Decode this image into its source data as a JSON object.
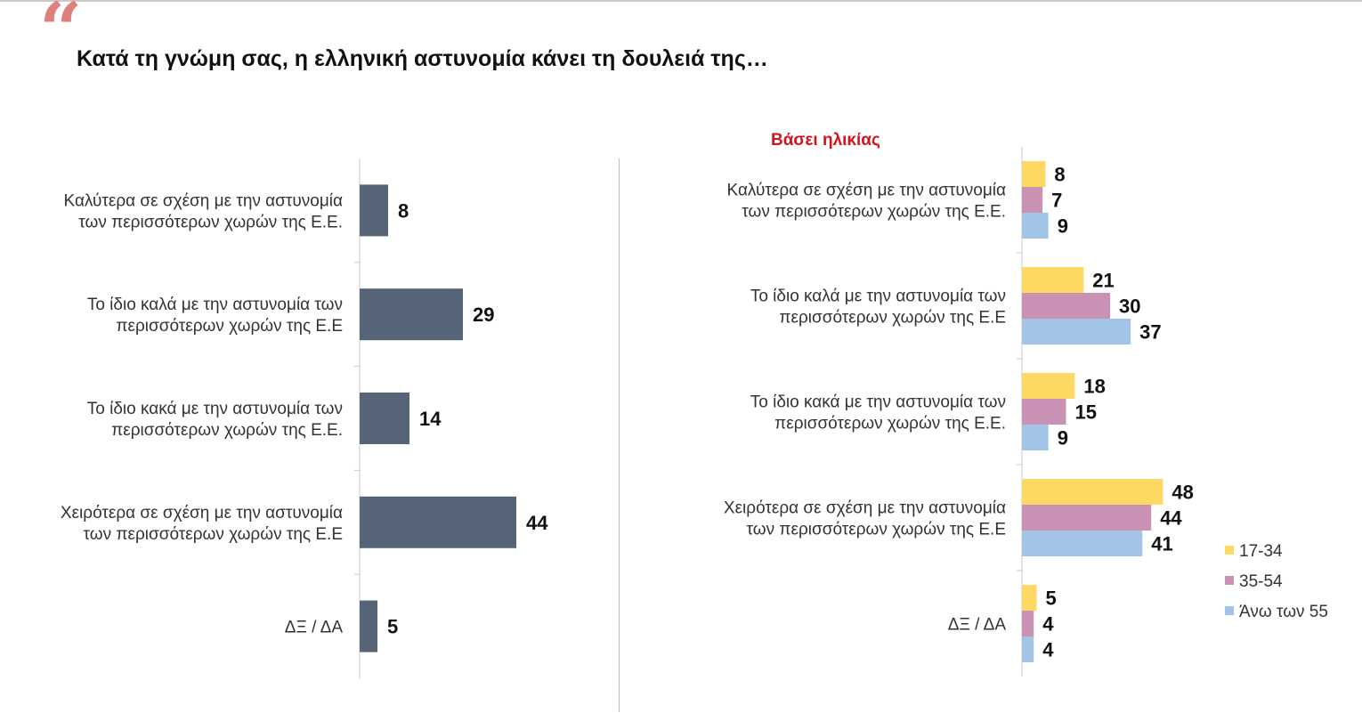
{
  "header": {
    "quote_mark": "“",
    "title": "Κατά τη γνώμη σας, η ελληνική αστυνομία κάνει τη δουλειά της…",
    "subtitle": "Βάσει ηλικίας"
  },
  "colors": {
    "total": "#566477",
    "age_17_34": "#fdd964",
    "age_35_54": "#c992b5",
    "age_55_plus": "#a2c4e6"
  },
  "chart_data": [
    {
      "type": "bar",
      "orientation": "horizontal",
      "title": "",
      "categories": [
        [
          "Καλύτερα σε σχέση με την αστυνομία",
          "των περισσότερων χωρών της Ε.Ε."
        ],
        [
          "Το ίδιο καλά με την αστυνομία των",
          "περισσότερων χωρών της Ε.Ε"
        ],
        [
          "Το ίδιο κακά με την αστυνομία των",
          "περισσότερων χωρών της Ε.Ε."
        ],
        [
          "Χειρότερα σε σχέση με την αστυνομία",
          "των περισσότερων χωρών της Ε.Ε"
        ],
        [
          "ΔΞ / ΔΑ"
        ]
      ],
      "values": [
        8,
        29,
        14,
        44,
        5
      ],
      "xlim": [
        0,
        60
      ],
      "grid": false,
      "legend": "none"
    },
    {
      "type": "bar",
      "orientation": "horizontal",
      "title": "Βάσει ηλικίας",
      "categories": [
        [
          "Καλύτερα σε σχέση με την αστυνομία",
          "των περισσότερων χωρών της Ε.Ε."
        ],
        [
          "Το ίδιο καλά με την αστυνομία των",
          "περισσότερων χωρών της Ε.Ε"
        ],
        [
          "Το ίδιο κακά με την αστυνομία των",
          "περισσότερων χωρών της Ε.Ε."
        ],
        [
          "Χειρότερα σε σχέση με την αστυνομία",
          "των περισσότερων χωρών της Ε.Ε"
        ],
        [
          "ΔΞ / ΔΑ"
        ]
      ],
      "series": [
        {
          "name": "17-34",
          "values": [
            8,
            21,
            18,
            48,
            5
          ]
        },
        {
          "name": "35-54",
          "values": [
            7,
            30,
            15,
            44,
            4
          ]
        },
        {
          "name": "Άνω των 55",
          "values": [
            9,
            37,
            9,
            41,
            4
          ]
        }
      ],
      "xlim": [
        0,
        60
      ],
      "grid": false,
      "legend": "bottom-right"
    }
  ]
}
